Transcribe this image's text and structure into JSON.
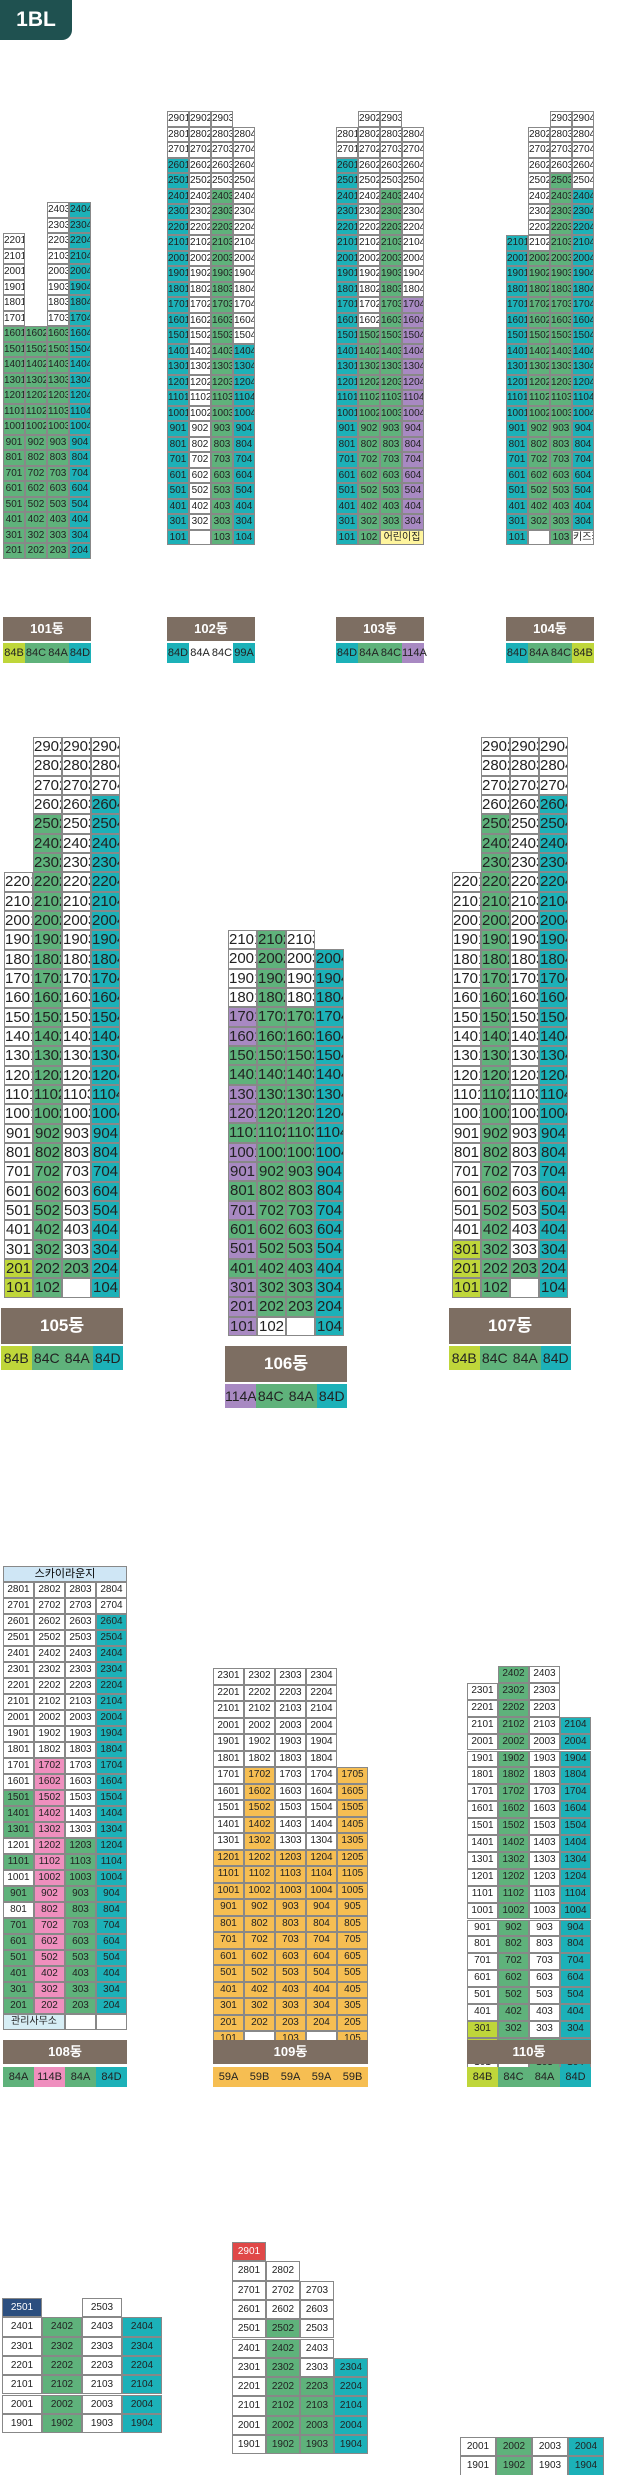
{
  "badge": "1BL",
  "colors": {
    "teal": "#1cb1b8",
    "green": "#5fb27b",
    "purple": "#a889c2",
    "pink": "#ef8fbe",
    "orange": "#f6be52",
    "lime": "#bfd63a",
    "yellow": "#fff59e",
    "name_bg": "#7d6e62",
    "red": "#e04848",
    "navy": "#2b4e7f"
  },
  "buildings": [
    {
      "name": "101동",
      "lines": [
        1,
        2,
        3,
        4
      ],
      "tower": "201",
      "tail": "202",
      "fc": [
        2,
        3,
        4
      ],
      "bf": 201,
      "towerFloors": 22,
      "tops": [
        22,
        16,
        24,
        24
      ],
      "bottom": [
        201,
        202,
        203,
        204
      ],
      "colors": [
        "",
        "green",
        "",
        "teal"
      ],
      "first": {
        "label": ""
      },
      "types": [
        {
          "t": "84B",
          "c": "lime"
        },
        {
          "t": "84C",
          "c": "green"
        },
        {
          "t": "84A",
          "c": "green"
        },
        {
          "t": "84D",
          "c": "teal"
        }
      ]
    }
  ],
  "b101": {
    "name": "101동",
    "types": [
      [
        "84B",
        "lime"
      ],
      [
        "84C",
        "green"
      ],
      [
        "84A",
        "green"
      ],
      [
        "84D",
        "teal"
      ]
    ]
  },
  "b102": {
    "name": "102동",
    "types": [
      [
        "84D",
        "teal"
      ],
      [
        "84A",
        "white"
      ],
      [
        "84C",
        "white"
      ],
      [
        "99A",
        "teal"
      ]
    ],
    "b1": [
      "101",
      "",
      "103",
      "104"
    ]
  },
  "b103": {
    "name": "103동",
    "types": [
      [
        "84D",
        "teal"
      ],
      [
        "84A",
        "green"
      ],
      [
        "84C",
        "green"
      ],
      [
        "114A",
        "purple"
      ]
    ],
    "b1": [
      "101",
      "102",
      "어린이집"
    ]
  },
  "b104": {
    "name": "104동",
    "types": [
      [
        "84D",
        "teal"
      ],
      [
        "84A",
        "green"
      ],
      [
        "84C",
        "green"
      ],
      [
        "84B",
        "lime"
      ]
    ],
    "b1": [
      "101",
      "",
      "103",
      "키즈카페"
    ]
  },
  "b105": {
    "name": "105동",
    "types": [
      [
        "84B",
        "lime"
      ],
      [
        "84C",
        "green"
      ],
      [
        "84A",
        "green"
      ],
      [
        "84D",
        "teal"
      ]
    ]
  },
  "b106": {
    "name": "106동",
    "types": [
      [
        "114A",
        "purple"
      ],
      [
        "84C",
        "green"
      ],
      [
        "84A",
        "green"
      ],
      [
        "84D",
        "teal"
      ]
    ]
  },
  "b107": {
    "name": "107동",
    "types": [
      [
        "84B",
        "lime"
      ],
      [
        "84C",
        "green"
      ],
      [
        "84A",
        "green"
      ],
      [
        "84D",
        "teal"
      ]
    ]
  },
  "b108": {
    "name": "108동",
    "types": [
      [
        "84A",
        "green"
      ],
      [
        "114B",
        "pink"
      ],
      [
        "84A",
        "green"
      ],
      [
        "84D",
        "teal"
      ]
    ],
    "roof": "스카이라운지",
    "office": "관리사무소"
  },
  "b109": {
    "name": "109동",
    "types": [
      [
        "59A",
        "orange"
      ],
      [
        "59B",
        "orange"
      ],
      [
        "59A",
        "orange"
      ],
      [
        "59A",
        "orange"
      ],
      [
        "59B",
        "orange"
      ]
    ]
  },
  "b110": {
    "name": "110동",
    "types": [
      [
        "84B",
        "lime"
      ],
      [
        "84C",
        "green"
      ],
      [
        "84A",
        "green"
      ],
      [
        "84D",
        "teal"
      ]
    ]
  },
  "b111_top": "2501",
  "b112_top": "2901"
}
